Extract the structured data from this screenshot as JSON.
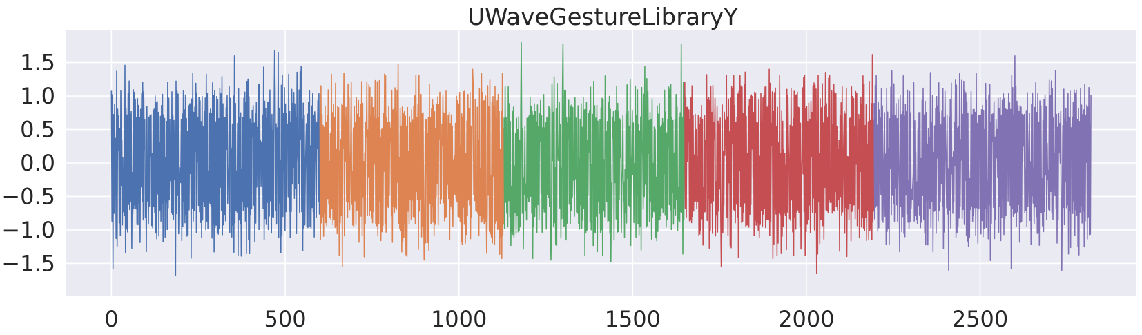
{
  "chart_data": {
    "type": "line",
    "title": "UWaveGestureLibraryY",
    "xlabel": "",
    "ylabel": "",
    "xlim": [
      -130,
      2950
    ],
    "ylim": [
      -1.98,
      1.98
    ],
    "x_ticks": [
      0,
      500,
      1000,
      1500,
      2000,
      2500
    ],
    "x_tick_labels": [
      "0",
      "500",
      "1000",
      "1500",
      "2000",
      "2500"
    ],
    "y_ticks": [
      1.5,
      1.0,
      0.5,
      0.0,
      -0.5,
      -1.0,
      -1.5
    ],
    "y_tick_labels": [
      "1.5",
      "1.0",
      "0.5",
      "0.0",
      "−0.5",
      "−1.0",
      "−1.5"
    ],
    "grid": true,
    "background": "#eaeaf2",
    "series": [
      {
        "x_start": 0,
        "x_end": 600,
        "color": "#4c72b0",
        "peaks_high": [
          [
            10,
            0.98
          ],
          [
            250,
            1.45
          ],
          [
            354,
            1.6
          ],
          [
            470,
            1.68
          ],
          [
            480,
            1.65
          ]
        ],
        "peaks_low": [
          [
            5,
            -1.58
          ],
          [
            185,
            -1.68
          ],
          [
            445,
            -1.62
          ],
          [
            520,
            -1.48
          ]
        ]
      },
      {
        "x_start": 600,
        "x_end": 1130,
        "color": "#dd8452",
        "peaks_high": [
          [
            610,
            1.35
          ],
          [
            825,
            1.48
          ],
          [
            1040,
            1.4
          ]
        ],
        "peaks_low": [
          [
            665,
            -1.55
          ],
          [
            900,
            -1.45
          ],
          [
            1080,
            -1.35
          ]
        ]
      },
      {
        "x_start": 1130,
        "x_end": 1650,
        "color": "#55a868",
        "peaks_high": [
          [
            1180,
            1.8
          ],
          [
            1300,
            1.78
          ],
          [
            1640,
            1.78
          ]
        ],
        "peaks_low": [
          [
            1265,
            -1.45
          ],
          [
            1410,
            -1.48
          ],
          [
            1620,
            -1.55
          ]
        ]
      },
      {
        "x_start": 1650,
        "x_end": 2195,
        "color": "#c44e52",
        "peaks_high": [
          [
            1750,
            1.55
          ],
          [
            2125,
            1.82
          ],
          [
            2190,
            1.62
          ]
        ],
        "peaks_low": [
          [
            1755,
            -1.55
          ],
          [
            1975,
            -1.8
          ],
          [
            2030,
            -1.65
          ]
        ]
      },
      {
        "x_start": 2195,
        "x_end": 2820,
        "color": "#8172b3",
        "peaks_high": [
          [
            2310,
            1.5
          ],
          [
            2600,
            1.6
          ],
          [
            2700,
            1.4
          ]
        ],
        "peaks_low": [
          [
            2410,
            -1.6
          ],
          [
            2590,
            -1.58
          ],
          [
            2735,
            -1.6
          ]
        ]
      }
    ]
  }
}
